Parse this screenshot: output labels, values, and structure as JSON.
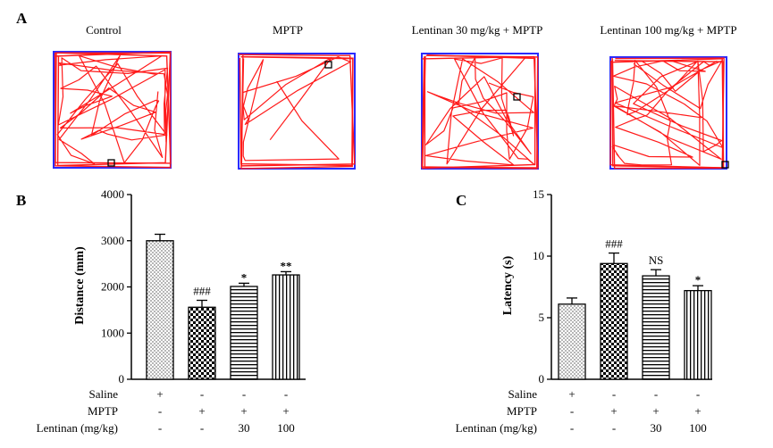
{
  "panel_labels": {
    "a": "A",
    "b": "B",
    "c": "C"
  },
  "colors": {
    "track": "#ff1a1a",
    "arena_border": "#2b2bff",
    "axis": "#000000"
  },
  "panel_a": {
    "groups": [
      "Control",
      "MPTP",
      "Lentinan 30 mg/kg + MPTP",
      "Lentinan 100 mg/kg + MPTP"
    ]
  },
  "conditions": {
    "row_labels": [
      "Saline",
      "MPTP",
      "Lentinan (mg/kg)"
    ],
    "columns": [
      [
        "+",
        "-",
        "-"
      ],
      [
        "-",
        "+",
        "-"
      ],
      [
        "-",
        "+",
        "30"
      ],
      [
        "-",
        "+",
        "100"
      ]
    ]
  },
  "chart_data": [
    {
      "type": "bar",
      "panel": "B",
      "ylabel": "Distance (mm)",
      "xlabel": "",
      "ylim": [
        0,
        4000
      ],
      "yticks": [
        0,
        1000,
        2000,
        3000,
        4000
      ],
      "categories": [
        "Control",
        "MPTP",
        "Lentinan 30 mg/kg + MPTP",
        "Lentinan 100 mg/kg + MPTP"
      ],
      "values": [
        3000,
        1560,
        2010,
        2260
      ],
      "errors": [
        140,
        150,
        70,
        70
      ],
      "patterns": [
        "dots",
        "checker",
        "hlines",
        "vlines"
      ],
      "significance": [
        "",
        "###",
        "*",
        "**"
      ]
    },
    {
      "type": "bar",
      "panel": "C",
      "ylabel": "Latency (s)",
      "xlabel": "",
      "ylim": [
        0,
        15
      ],
      "yticks": [
        0,
        5,
        10,
        15
      ],
      "categories": [
        "Control",
        "MPTP",
        "Lentinan 30 mg/kg + MPTP",
        "Lentinan 100 mg/kg + MPTP"
      ],
      "values": [
        6.1,
        9.4,
        8.4,
        7.2
      ],
      "errors": [
        0.5,
        0.85,
        0.5,
        0.4
      ],
      "patterns": [
        "dots",
        "checker",
        "hlines",
        "vlines"
      ],
      "significance": [
        "",
        "###",
        "NS",
        "*"
      ]
    }
  ]
}
